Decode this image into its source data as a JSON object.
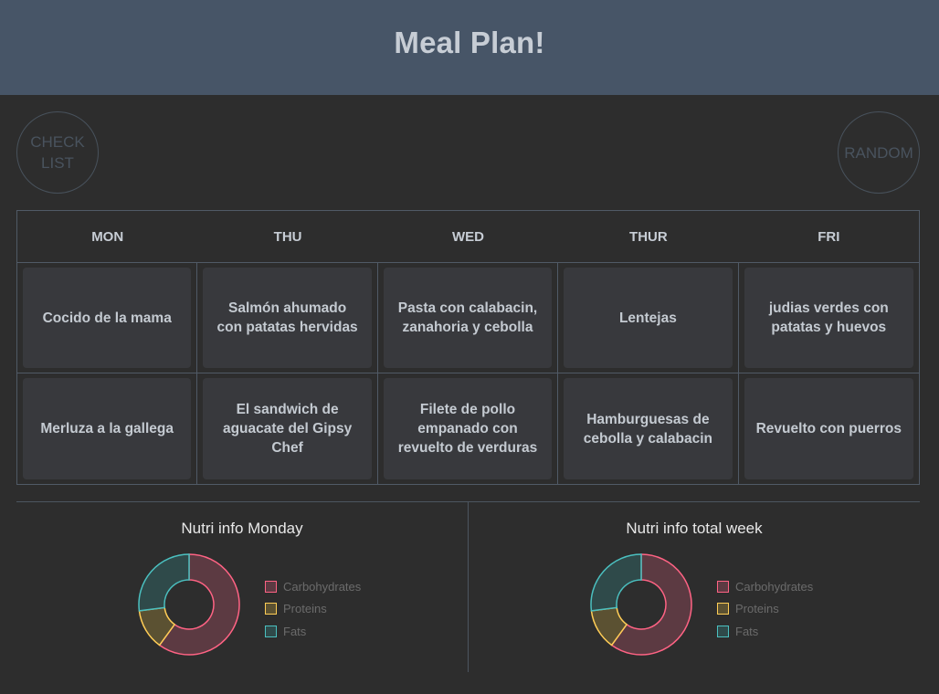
{
  "header": {
    "title": "Meal Plan!"
  },
  "buttons": {
    "checklist_line1": "CHECK",
    "checklist_line2": "LIST",
    "random": "RANDOM"
  },
  "days": [
    "MON",
    "THU",
    "WED",
    "THUR",
    "FRI"
  ],
  "meals": {
    "row1": [
      "Cocido de la mama",
      "Salmón ahumado con patatas hervidas",
      "Pasta con calabacin, zanahoria y cebolla",
      "Lentejas",
      "judias verdes con patatas y huevos"
    ],
    "row2": [
      "Merluza a la gallega",
      "El sandwich de aguacate del Gipsy Chef",
      "Filete de pollo empanado con revuelto de verduras",
      "Hamburguesas de cebolla y calabacin",
      "Revuelto con puerros"
    ]
  },
  "nutri_monday": {
    "title": "Nutri info Monday"
  },
  "nutri_week": {
    "title": "Nutri info total week"
  },
  "legend": {
    "carbs": "Carbohydrates",
    "proteins": "Proteins",
    "fats": "Fats"
  },
  "colors": {
    "carbs_stroke": "#ff6384",
    "carbs_fill": "#5c3a42",
    "proteins_stroke": "#ffcd56",
    "proteins_fill": "#5b5132",
    "fats_stroke": "#4bc0c0",
    "fats_fill": "#2f4a4a"
  },
  "chart_data": [
    {
      "type": "pie",
      "title": "Nutri info Monday",
      "categories": [
        "Carbohydrates",
        "Proteins",
        "Fats"
      ],
      "values": [
        60,
        13,
        27
      ]
    },
    {
      "type": "pie",
      "title": "Nutri info total week",
      "categories": [
        "Carbohydrates",
        "Proteins",
        "Fats"
      ],
      "values": [
        60,
        13,
        27
      ]
    }
  ]
}
